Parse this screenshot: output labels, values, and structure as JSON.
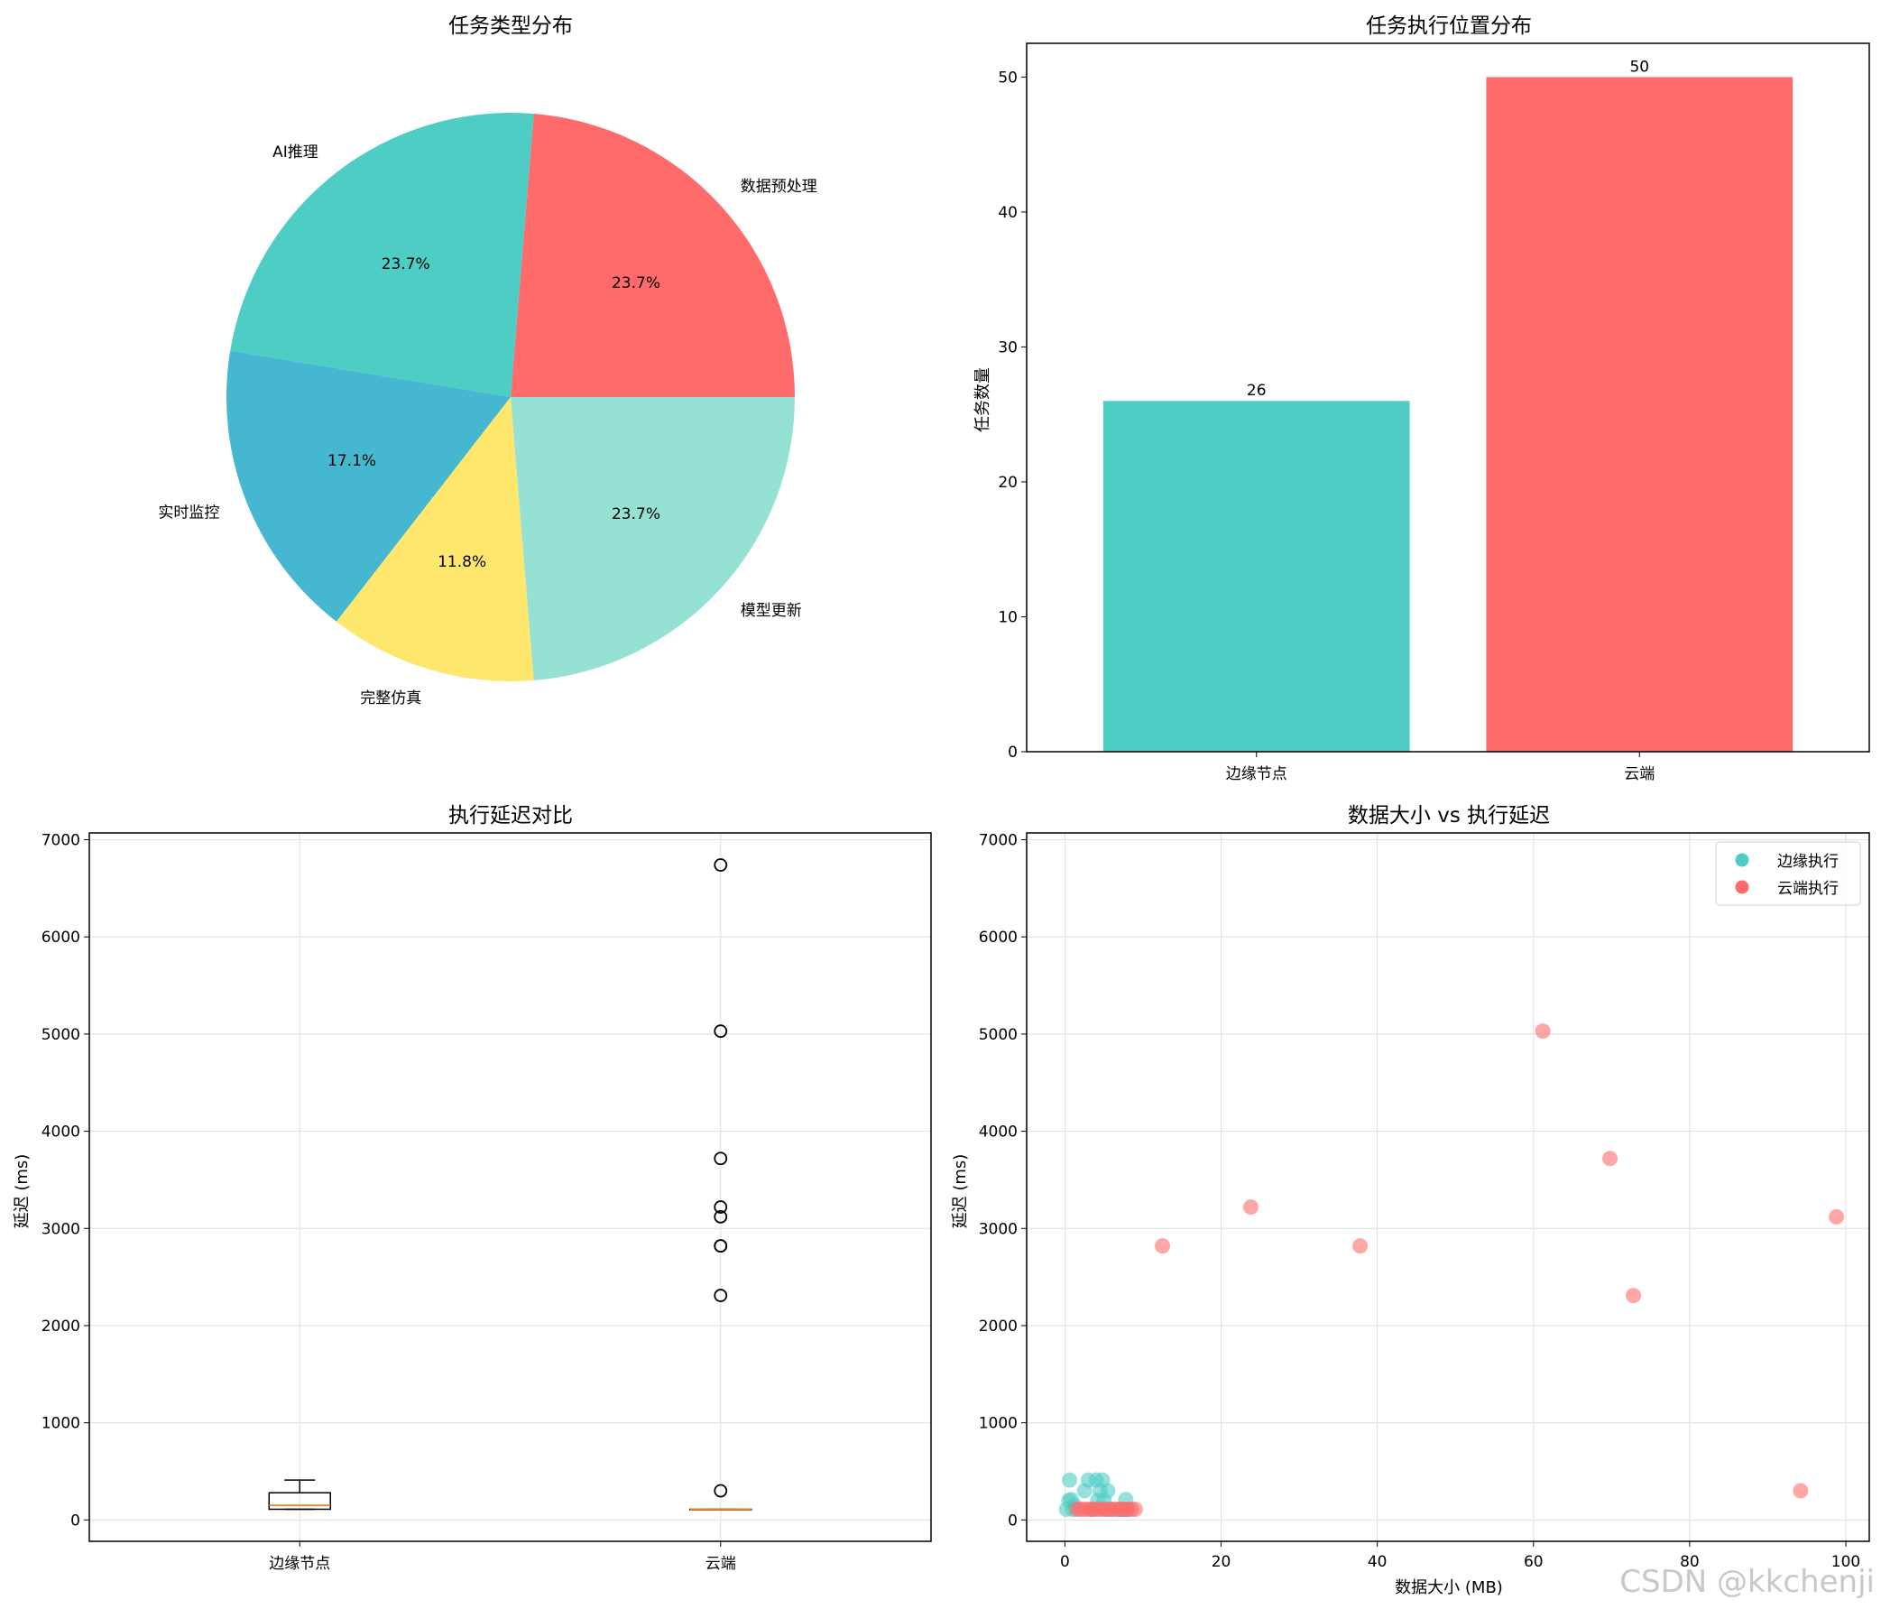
{
  "watermark": "CSDN @kkchenji",
  "chart_data": [
    {
      "type": "pie",
      "title": "任务类型分布",
      "slices": [
        {
          "label": "数据预处理",
          "value": 23.7,
          "pct_label": "23.7%",
          "color": "#FF6B6B"
        },
        {
          "label": "AI推理",
          "value": 23.7,
          "pct_label": "23.7%",
          "color": "#4ECDC4"
        },
        {
          "label": "实时监控",
          "value": 17.1,
          "pct_label": "17.1%",
          "color": "#45B7D1"
        },
        {
          "label": "完整仿真",
          "value": 11.8,
          "pct_label": "11.8%",
          "color": "#FFE66D"
        },
        {
          "label": "模型更新",
          "value": 23.7,
          "pct_label": "23.7%",
          "color": "#95E1D3"
        }
      ]
    },
    {
      "type": "bar",
      "title": "任务执行位置分布",
      "ylabel": "任务数量",
      "categories": [
        "边缘节点",
        "云端"
      ],
      "values": [
        26,
        50
      ],
      "colors": [
        "#4ECDC4",
        "#FF6B6B"
      ],
      "ylim": [
        0,
        52.5
      ],
      "yticks": [
        0,
        10,
        20,
        30,
        40,
        50
      ]
    },
    {
      "type": "box",
      "title": "执行延迟对比",
      "ylabel": "延迟 (ms)",
      "categories": [
        "边缘节点",
        "云端"
      ],
      "ylim": [
        -220,
        7070
      ],
      "yticks": [
        0,
        1000,
        2000,
        3000,
        4000,
        5000,
        6000,
        7000
      ],
      "grid": true,
      "boxes": [
        {
          "q1": 110,
          "median": 150,
          "q3": 280,
          "whisker_low": 110,
          "whisker_high": 410,
          "outliers": []
        },
        {
          "q1": 110,
          "median": 110,
          "q3": 110,
          "whisker_low": 110,
          "whisker_high": 110,
          "outliers": [
            300,
            2310,
            2820,
            2820,
            3120,
            3220,
            3720,
            5030,
            6740
          ]
        }
      ]
    },
    {
      "type": "scatter",
      "title": "数据大小 vs 执行延迟",
      "xlabel": "数据大小 (MB)",
      "ylabel": "延迟 (ms)",
      "xlim": [
        -4.9,
        103
      ],
      "ylim": [
        -220,
        7070
      ],
      "xticks": [
        0,
        20,
        40,
        60,
        80,
        100
      ],
      "yticks": [
        0,
        1000,
        2000,
        3000,
        4000,
        5000,
        6000,
        7000
      ],
      "grid": true,
      "legend_position": "top-right",
      "series": [
        {
          "name": "边缘执行",
          "color": "#4ECDC4",
          "points": [
            [
              0.2,
              110
            ],
            [
              0.5,
              200
            ],
            [
              0.6,
              410
            ],
            [
              0.8,
              210
            ],
            [
              1.0,
              110
            ],
            [
              1.2,
              150
            ],
            [
              2.5,
              300
            ],
            [
              3.0,
              410
            ],
            [
              3.5,
              110
            ],
            [
              4.0,
              410
            ],
            [
              4.2,
              200
            ],
            [
              4.5,
              300
            ],
            [
              4.8,
              410
            ],
            [
              5.0,
              200
            ],
            [
              5.2,
              110
            ],
            [
              5.5,
              300
            ],
            [
              6.0,
              110
            ],
            [
              7.0,
              110
            ],
            [
              7.5,
              110
            ],
            [
              7.8,
              210
            ],
            [
              8.0,
              110
            ]
          ]
        },
        {
          "name": "云端执行",
          "color": "#FF6B6B",
          "points": [
            [
              1.5,
              110
            ],
            [
              2.0,
              110
            ],
            [
              2.5,
              110
            ],
            [
              3.0,
              110
            ],
            [
              3.5,
              110
            ],
            [
              4.0,
              110
            ],
            [
              4.5,
              110
            ],
            [
              5.0,
              110
            ],
            [
              5.5,
              110
            ],
            [
              6.0,
              110
            ],
            [
              6.5,
              110
            ],
            [
              7.0,
              110
            ],
            [
              7.5,
              110
            ],
            [
              8.0,
              110
            ],
            [
              8.5,
              110
            ],
            [
              9.0,
              110
            ],
            [
              12.5,
              2820
            ],
            [
              23.8,
              3220
            ],
            [
              37.8,
              2820
            ],
            [
              61.2,
              5030
            ],
            [
              69.8,
              3720
            ],
            [
              72.8,
              2310
            ],
            [
              94.2,
              300
            ],
            [
              98.8,
              3120
            ]
          ]
        }
      ]
    }
  ]
}
